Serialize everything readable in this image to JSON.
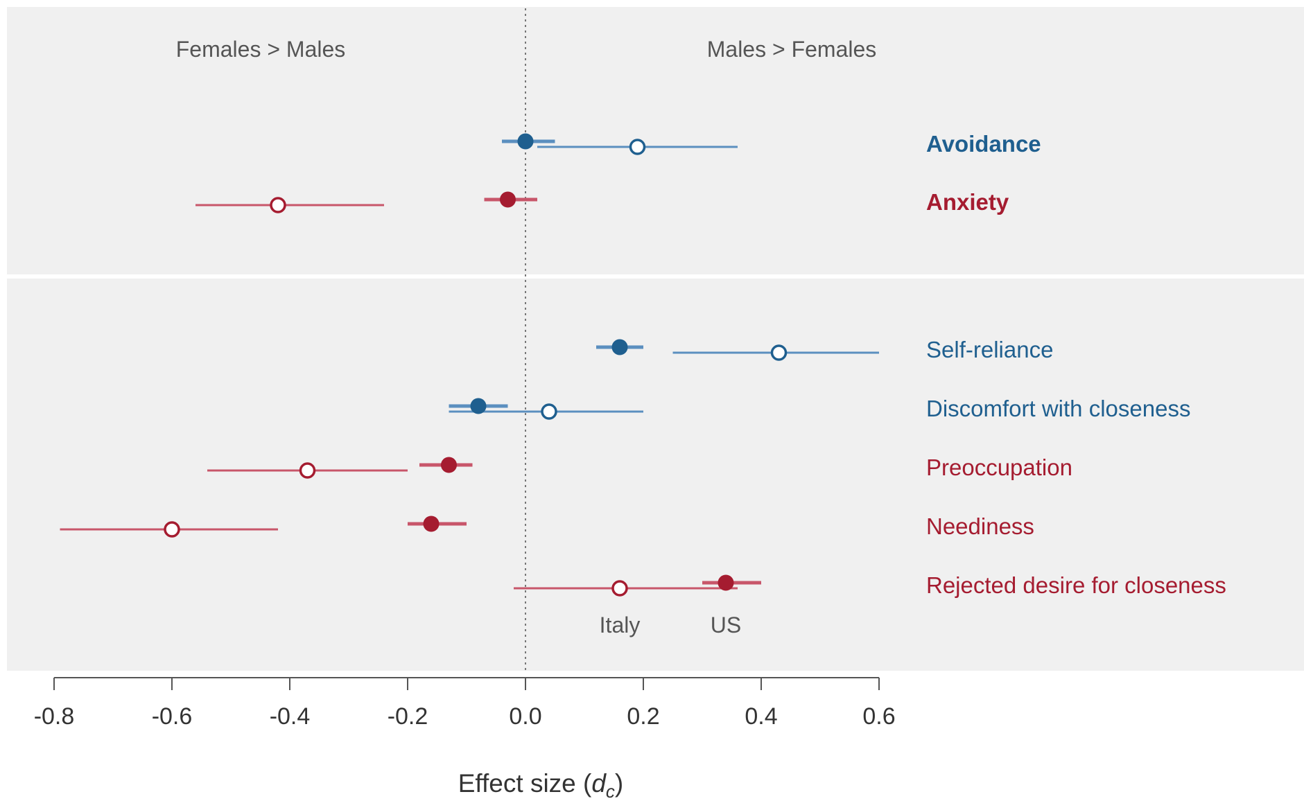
{
  "chart_data": {
    "type": "scatter",
    "subtype": "forest-plot",
    "xlabel": "Effect size (",
    "xlabel_var": "d",
    "xlabel_sub": "c",
    "xlabel_close": ")",
    "xlim": [
      -0.8,
      0.6
    ],
    "xticks": [
      -0.8,
      -0.6,
      -0.4,
      -0.2,
      0.0,
      0.2,
      0.4,
      0.6
    ],
    "xtick_labels": [
      "-0.8",
      "-0.6",
      "-0.4",
      "-0.2",
      "0.0",
      "0.2",
      "0.4",
      "0.6"
    ],
    "reference_line_x": 0.0,
    "direction_labels": {
      "left": "Females > Males",
      "right": "Males > Females"
    },
    "legend_labels": [
      {
        "text": "Italy",
        "x": 0.16
      },
      {
        "text": "US",
        "x": 0.34
      }
    ],
    "colors": {
      "avoidance": "#1f5f8f",
      "avoidance_light": "#5b8fbf",
      "anxiety": "#a51c30",
      "anxiety_light": "#c8566a",
      "panel_bg": "#f0f0f0",
      "axis": "#555555",
      "text_gray": "#555555"
    },
    "panels": [
      {
        "rows": [
          {
            "label": "Avoidance",
            "bold": true,
            "color_key": "avoidance",
            "us": {
              "est": 0.0,
              "lo": -0.04,
              "hi": 0.05
            },
            "italy": {
              "est": 0.19,
              "lo": 0.02,
              "hi": 0.36
            }
          },
          {
            "label": "Anxiety",
            "bold": true,
            "color_key": "anxiety",
            "us": {
              "est": -0.03,
              "lo": -0.07,
              "hi": 0.02
            },
            "italy": {
              "est": -0.42,
              "lo": -0.56,
              "hi": -0.24
            }
          }
        ]
      },
      {
        "rows": [
          {
            "label": "Self-reliance",
            "bold": false,
            "color_key": "avoidance",
            "us": {
              "est": 0.16,
              "lo": 0.12,
              "hi": 0.2
            },
            "italy": {
              "est": 0.43,
              "lo": 0.25,
              "hi": 0.6
            }
          },
          {
            "label": "Discomfort with closeness",
            "bold": false,
            "color_key": "avoidance",
            "us": {
              "est": -0.08,
              "lo": -0.13,
              "hi": -0.03
            },
            "italy": {
              "est": 0.04,
              "lo": -0.13,
              "hi": 0.2
            }
          },
          {
            "label": "Preoccupation",
            "bold": false,
            "color_key": "anxiety",
            "us": {
              "est": -0.13,
              "lo": -0.18,
              "hi": -0.09
            },
            "italy": {
              "est": -0.37,
              "lo": -0.54,
              "hi": -0.2
            }
          },
          {
            "label": "Neediness",
            "bold": false,
            "color_key": "anxiety",
            "us": {
              "est": -0.16,
              "lo": -0.2,
              "hi": -0.1
            },
            "italy": {
              "est": -0.6,
              "lo": -0.79,
              "hi": -0.42
            }
          },
          {
            "label": "Rejected desire for closeness",
            "bold": false,
            "color_key": "anxiety",
            "us": {
              "est": 0.34,
              "lo": 0.3,
              "hi": 0.4
            },
            "italy": {
              "est": 0.16,
              "lo": -0.02,
              "hi": 0.36
            }
          }
        ]
      }
    ]
  }
}
